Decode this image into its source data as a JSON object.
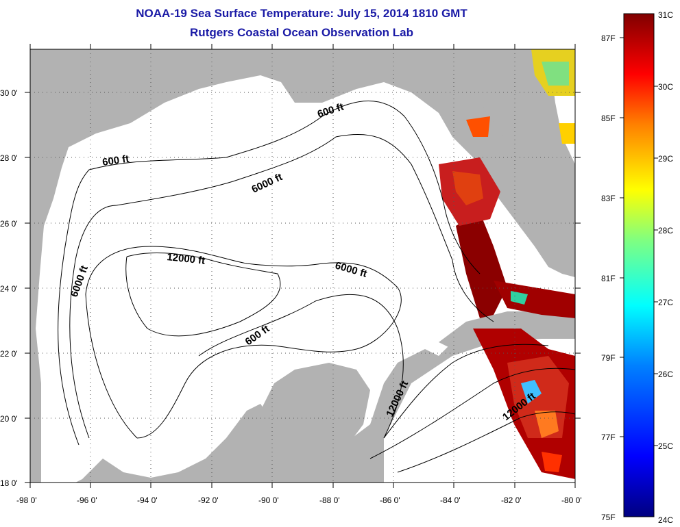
{
  "title": "NOAA-19 Sea Surface Temperature:  July 15, 2014 1810 GMT",
  "subtitle": "Rutgers Coastal Ocean Observation Lab",
  "x_ticks": [
    "-98 0'",
    "-96 0'",
    "-94 0'",
    "-92 0'",
    "-90 0'",
    "-88 0'",
    "-86 0'",
    "-84 0'",
    "-82 0'",
    "-80 0'"
  ],
  "y_ticks": [
    "18 0'",
    "20 0'",
    "22 0'",
    "24 0'",
    "26 0'",
    "28 0'",
    "30 0'"
  ],
  "contour_labels": [
    "600 ft",
    "600 ft",
    "600 ft",
    "6000 ft",
    "6000 ft",
    "6000 ft",
    "12000 ft",
    "12000 ft",
    "12000 ft"
  ],
  "colorbar": {
    "f_labels": [
      "87F",
      "85F",
      "83F",
      "81F",
      "79F",
      "77F",
      "75F"
    ],
    "c_labels": [
      "31C",
      "30C",
      "29C",
      "28C",
      "27C",
      "26C",
      "25C",
      "24C"
    ],
    "range_c": [
      24,
      31
    ],
    "colors": [
      "#000080",
      "#0000ff",
      "#0080ff",
      "#00ffff",
      "#80ff80",
      "#ffff00",
      "#ff8000",
      "#ff0000",
      "#800000"
    ]
  },
  "colors": {
    "land": "#b2b2b2",
    "title": "#1a1aa6"
  }
}
